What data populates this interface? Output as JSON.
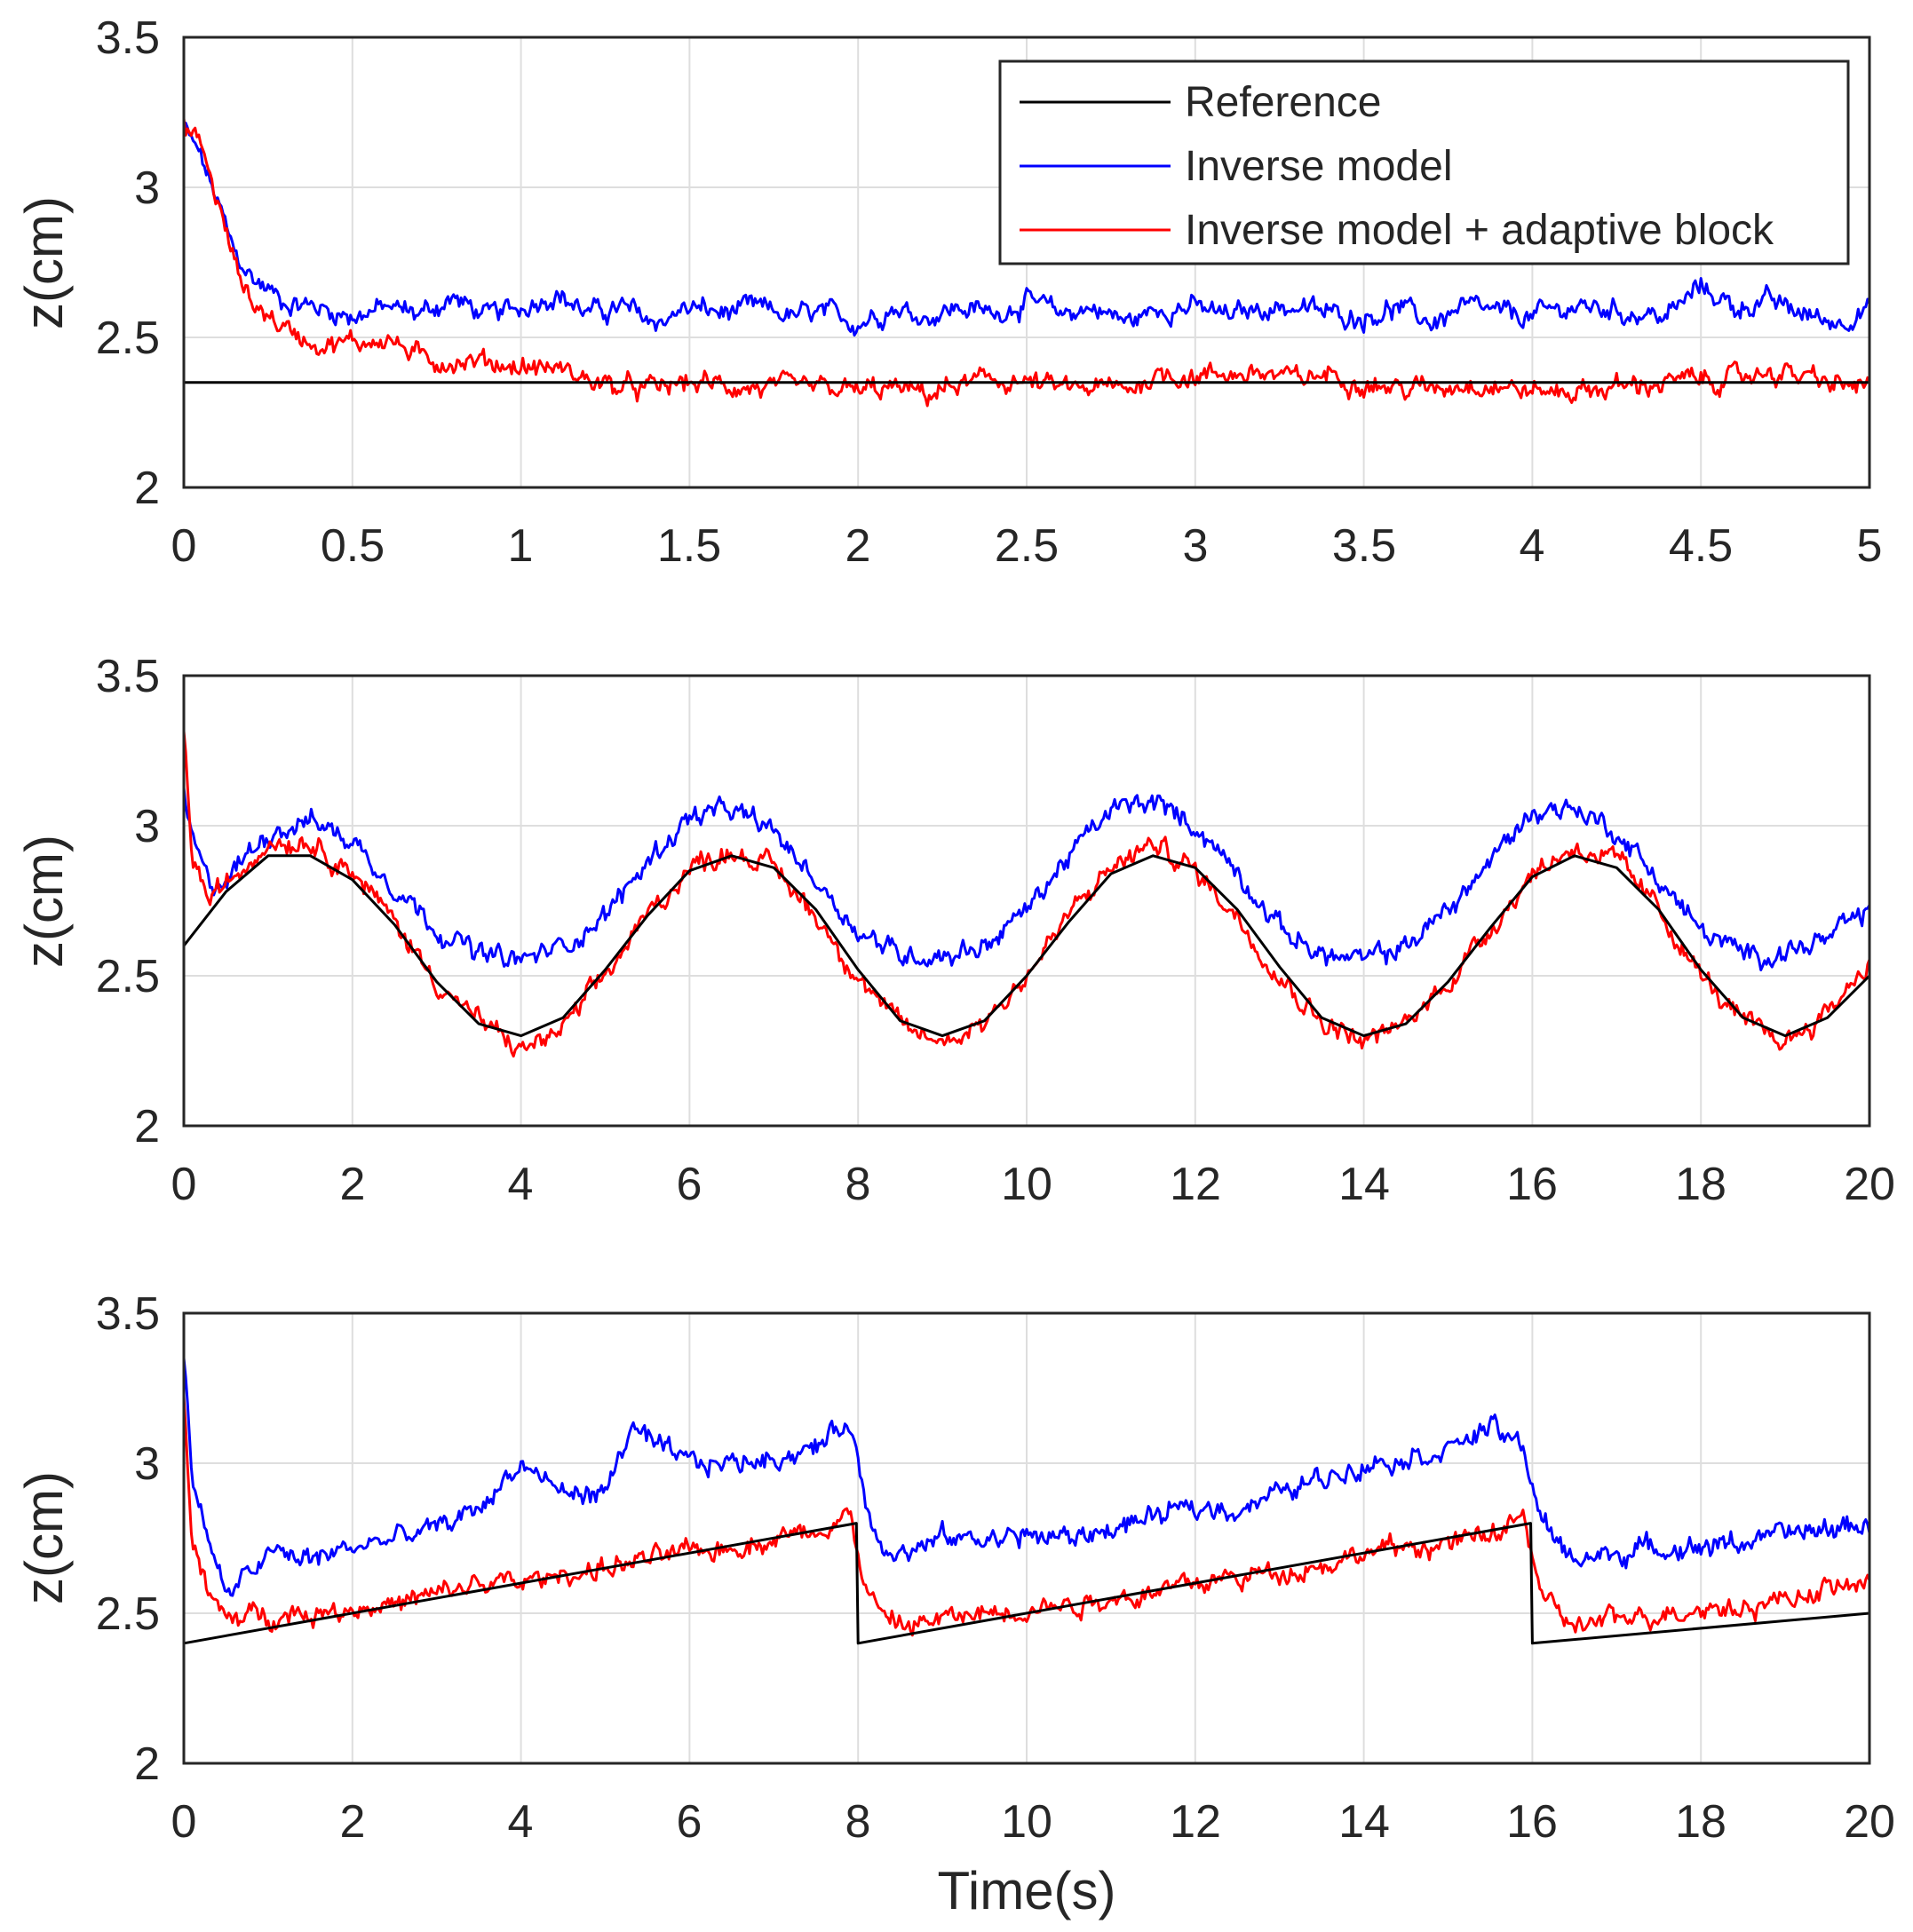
{
  "chart_data": [
    {
      "type": "line",
      "id": "step",
      "xlim": [
        0,
        5
      ],
      "ylim": [
        2,
        3.5
      ],
      "xticks": [
        "0",
        "0.5",
        "1",
        "1.5",
        "2",
        "2.5",
        "3",
        "3.5",
        "4",
        "4.5",
        "5"
      ],
      "yticks": [
        "2",
        "2.5",
        "3",
        "3.5"
      ],
      "ylabel": "z(cm)",
      "xlabel": "",
      "grid": true,
      "legend": "top-right",
      "series": [
        {
          "name": "Reference",
          "color": "#000000",
          "x": [
            0,
            5
          ],
          "y": [
            2.35,
            2.35
          ]
        },
        {
          "name": "Inverse model",
          "color": "#0000ff",
          "x": [
            0,
            0.05,
            0.1,
            0.15,
            0.2,
            0.3,
            0.4,
            0.5,
            0.6,
            0.7,
            0.8,
            0.9,
            1.0,
            1.1,
            1.2,
            1.3,
            1.4,
            1.5,
            1.6,
            1.7,
            1.8,
            1.9,
            2.0,
            2.1,
            2.2,
            2.3,
            2.4,
            2.5,
            2.6,
            2.7,
            2.8,
            2.9,
            3.0,
            3.1,
            3.2,
            3.3,
            3.4,
            3.5,
            3.6,
            3.7,
            3.8,
            3.9,
            4.0,
            4.1,
            4.2,
            4.3,
            4.4,
            4.5,
            4.6,
            4.7,
            4.8,
            4.9,
            5.0
          ],
          "y": [
            3.2,
            3.1,
            2.95,
            2.78,
            2.7,
            2.62,
            2.6,
            2.57,
            2.6,
            2.58,
            2.63,
            2.57,
            2.6,
            2.65,
            2.58,
            2.6,
            2.55,
            2.6,
            2.58,
            2.6,
            2.57,
            2.58,
            2.55,
            2.6,
            2.57,
            2.6,
            2.58,
            2.62,
            2.58,
            2.6,
            2.55,
            2.6,
            2.6,
            2.57,
            2.6,
            2.6,
            2.58,
            2.57,
            2.6,
            2.55,
            2.6,
            2.58,
            2.57,
            2.6,
            2.6,
            2.58,
            2.57,
            2.67,
            2.6,
            2.62,
            2.58,
            2.55,
            2.6
          ]
        },
        {
          "name": "Inverse model + adaptive block",
          "color": "#ff0000",
          "x": [
            0,
            0.05,
            0.1,
            0.15,
            0.2,
            0.3,
            0.4,
            0.5,
            0.6,
            0.7,
            0.8,
            0.9,
            1.0,
            1.1,
            1.2,
            1.3,
            1.4,
            1.5,
            1.6,
            1.7,
            1.8,
            1.9,
            2.0,
            2.1,
            2.2,
            2.3,
            2.4,
            2.5,
            2.6,
            2.7,
            2.8,
            2.9,
            3.0,
            3.1,
            3.2,
            3.3,
            3.4,
            3.5,
            3.6,
            3.7,
            3.8,
            3.9,
            4.0,
            4.1,
            4.2,
            4.3,
            4.4,
            4.5,
            4.6,
            4.7,
            4.8,
            4.9,
            5.0
          ],
          "y": [
            3.2,
            3.15,
            2.95,
            2.75,
            2.62,
            2.53,
            2.48,
            2.48,
            2.5,
            2.43,
            2.42,
            2.42,
            2.4,
            2.4,
            2.36,
            2.33,
            2.33,
            2.35,
            2.34,
            2.33,
            2.33,
            2.33,
            2.32,
            2.33,
            2.31,
            2.34,
            2.36,
            2.35,
            2.33,
            2.33,
            2.33,
            2.38,
            2.37,
            2.38,
            2.38,
            2.36,
            2.38,
            2.35,
            2.33,
            2.33,
            2.35,
            2.34,
            2.32,
            2.32,
            2.33,
            2.34,
            2.35,
            2.36,
            2.36,
            2.39,
            2.37,
            2.34,
            2.34
          ]
        }
      ]
    },
    {
      "type": "line",
      "id": "sine",
      "xlim": [
        0,
        20
      ],
      "ylim": [
        2,
        3.5
      ],
      "xticks": [
        "0",
        "2",
        "4",
        "6",
        "8",
        "10",
        "12",
        "14",
        "16",
        "18",
        "20"
      ],
      "yticks": [
        "2",
        "2.5",
        "3",
        "3.5"
      ],
      "ylabel": "z(cm)",
      "xlabel": "",
      "grid": true,
      "series": [
        {
          "name": "Reference",
          "color": "#000000",
          "x": [
            0,
            0.5,
            1.0,
            1.5,
            2.0,
            2.5,
            3.0,
            3.5,
            4.0,
            4.5,
            5.0,
            5.5,
            6.0,
            6.5,
            7.0,
            7.5,
            8.0,
            8.5,
            9.0,
            9.5,
            10.0,
            10.5,
            11.0,
            11.5,
            12.0,
            12.5,
            13.0,
            13.5,
            14.0,
            14.5,
            15.0,
            15.5,
            16.0,
            16.5,
            17.0,
            17.5,
            18.0,
            18.5,
            19.0,
            19.5,
            20.0
          ],
          "y": [
            2.6,
            2.78,
            2.9,
            2.9,
            2.82,
            2.67,
            2.48,
            2.34,
            2.3,
            2.36,
            2.52,
            2.7,
            2.85,
            2.9,
            2.86,
            2.72,
            2.52,
            2.35,
            2.3,
            2.35,
            2.5,
            2.68,
            2.84,
            2.9,
            2.86,
            2.72,
            2.53,
            2.36,
            2.3,
            2.34,
            2.48,
            2.66,
            2.83,
            2.9,
            2.86,
            2.72,
            2.52,
            2.36,
            2.3,
            2.36,
            2.5
          ]
        },
        {
          "name": "Inverse model",
          "color": "#0000ff",
          "x": [
            0,
            0.1,
            0.3,
            0.5,
            1.0,
            1.5,
            2.0,
            2.5,
            3.0,
            3.5,
            4.0,
            4.5,
            5.0,
            5.5,
            6.0,
            6.5,
            7.0,
            7.5,
            8.0,
            8.5,
            9.0,
            9.5,
            10.0,
            10.5,
            11.0,
            11.5,
            12.0,
            12.5,
            13.0,
            13.5,
            14.0,
            14.5,
            15.0,
            15.5,
            16.0,
            16.5,
            17.0,
            17.5,
            18.0,
            18.5,
            19.0,
            19.5,
            20.0
          ],
          "y": [
            3.1,
            2.95,
            2.8,
            2.82,
            2.98,
            3.02,
            2.95,
            2.8,
            2.66,
            2.57,
            2.55,
            2.6,
            2.7,
            2.88,
            3.03,
            3.05,
            2.98,
            2.82,
            2.65,
            2.57,
            2.57,
            2.6,
            2.72,
            2.9,
            3.05,
            3.08,
            3.0,
            2.85,
            2.66,
            2.57,
            2.55,
            2.6,
            2.72,
            2.88,
            3.05,
            3.06,
            2.98,
            2.82,
            2.65,
            2.57,
            2.58,
            2.62,
            2.72
          ]
        },
        {
          "name": "Inverse model + adaptive block",
          "color": "#ff0000",
          "x": [
            0,
            0.1,
            0.3,
            0.5,
            1.0,
            1.5,
            2.0,
            2.5,
            3.0,
            3.5,
            4.0,
            4.5,
            5.0,
            5.5,
            6.0,
            6.5,
            7.0,
            7.5,
            8.0,
            8.5,
            9.0,
            9.5,
            10.0,
            10.5,
            11.0,
            11.5,
            12.0,
            12.5,
            13.0,
            13.5,
            14.0,
            14.5,
            15.0,
            15.5,
            16.0,
            16.5,
            17.0,
            17.5,
            18.0,
            18.5,
            19.0,
            19.5,
            20.0
          ],
          "y": [
            3.3,
            2.9,
            2.75,
            2.8,
            2.95,
            2.95,
            2.85,
            2.68,
            2.48,
            2.35,
            2.25,
            2.32,
            2.5,
            2.7,
            2.86,
            2.92,
            2.86,
            2.7,
            2.5,
            2.33,
            2.28,
            2.35,
            2.5,
            2.7,
            2.86,
            2.94,
            2.85,
            2.7,
            2.5,
            2.35,
            2.28,
            2.34,
            2.48,
            2.66,
            2.84,
            2.93,
            2.88,
            2.72,
            2.5,
            2.34,
            2.28,
            2.38,
            2.55
          ]
        }
      ]
    },
    {
      "type": "line",
      "id": "sawtooth",
      "xlim": [
        0,
        20
      ],
      "ylim": [
        2,
        3.5
      ],
      "xticks": [
        "0",
        "2",
        "4",
        "6",
        "8",
        "10",
        "12",
        "14",
        "16",
        "18",
        "20"
      ],
      "yticks": [
        "2",
        "2.5",
        "3",
        "3.5"
      ],
      "ylabel": "z(cm)",
      "xlabel": "Time(s)",
      "grid": true,
      "series": [
        {
          "name": "Reference",
          "color": "#000000",
          "x": [
            0,
            7.98,
            8.0,
            15.98,
            16.0,
            20.0
          ],
          "y": [
            2.4,
            2.8,
            2.4,
            2.8,
            2.4,
            2.5
          ]
        },
        {
          "name": "Inverse model",
          "color": "#0000ff",
          "x": [
            0,
            0.1,
            0.3,
            0.5,
            1.0,
            1.5,
            2.0,
            2.5,
            3.0,
            3.5,
            4.0,
            4.5,
            5.0,
            5.3,
            5.6,
            6.0,
            6.5,
            7.0,
            7.5,
            7.9,
            8.1,
            8.3,
            8.6,
            9.0,
            9.5,
            10.0,
            10.5,
            11.0,
            11.5,
            12.0,
            12.5,
            13.0,
            13.5,
            14.0,
            14.5,
            15.0,
            15.5,
            15.9,
            16.1,
            16.3,
            16.6,
            17.0,
            17.5,
            18.0,
            18.5,
            19.0,
            19.5,
            20.0
          ],
          "y": [
            3.35,
            2.95,
            2.75,
            2.55,
            2.7,
            2.68,
            2.72,
            2.75,
            2.78,
            2.85,
            3.0,
            2.9,
            2.9,
            3.12,
            3.05,
            3.0,
            3.0,
            3.02,
            3.05,
            3.15,
            2.85,
            2.73,
            2.7,
            2.75,
            2.75,
            2.76,
            2.75,
            2.78,
            2.82,
            2.85,
            2.85,
            2.9,
            2.95,
            3.0,
            3.02,
            3.05,
            3.12,
            3.05,
            2.82,
            2.72,
            2.68,
            2.7,
            2.72,
            2.72,
            2.74,
            2.76,
            2.78,
            2.8
          ]
        },
        {
          "name": "Inverse model + adaptive block",
          "color": "#ff0000",
          "x": [
            0,
            0.1,
            0.3,
            0.5,
            1.0,
            1.5,
            2.0,
            2.5,
            3.0,
            3.5,
            4.0,
            4.5,
            5.0,
            5.5,
            6.0,
            6.5,
            7.0,
            7.5,
            7.9,
            8.1,
            8.3,
            8.6,
            9.0,
            9.5,
            10.0,
            10.5,
            11.0,
            11.5,
            12.0,
            12.5,
            13.0,
            13.5,
            14.0,
            14.5,
            15.0,
            15.5,
            15.9,
            16.1,
            16.3,
            16.6,
            17.0,
            17.5,
            18.0,
            18.5,
            19.0,
            19.5,
            20.0
          ],
          "y": [
            3.2,
            2.75,
            2.55,
            2.48,
            2.5,
            2.5,
            2.52,
            2.53,
            2.56,
            2.6,
            2.6,
            2.63,
            2.65,
            2.68,
            2.7,
            2.72,
            2.75,
            2.78,
            2.83,
            2.58,
            2.48,
            2.46,
            2.48,
            2.5,
            2.52,
            2.53,
            2.55,
            2.57,
            2.6,
            2.62,
            2.64,
            2.66,
            2.7,
            2.72,
            2.73,
            2.76,
            2.82,
            2.58,
            2.48,
            2.46,
            2.48,
            2.5,
            2.52,
            2.52,
            2.55,
            2.58,
            2.6
          ]
        }
      ]
    }
  ],
  "legend": {
    "items": [
      {
        "label": "Reference",
        "color": "#000000"
      },
      {
        "label": "Inverse model",
        "color": "#0000ff"
      },
      {
        "label": "Inverse model + adaptive block",
        "color": "#ff0000"
      }
    ]
  }
}
